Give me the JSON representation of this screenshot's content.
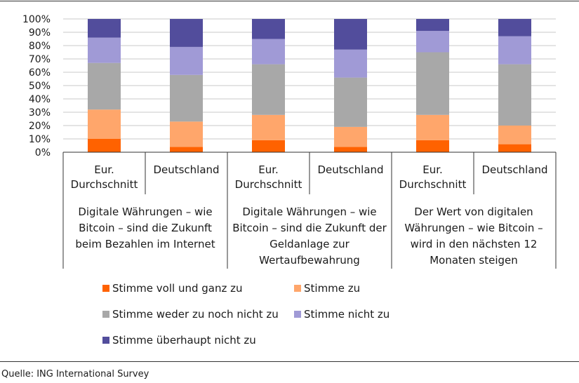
{
  "chart_data": {
    "type": "bar",
    "stacked": true,
    "ylim": [
      0,
      100
    ],
    "grid": true,
    "legend_placement": "bottom",
    "y_ticks": [
      "0%",
      "10%",
      "20%",
      "30%",
      "40%",
      "50%",
      "60%",
      "70%",
      "80%",
      "90%",
      "100%"
    ],
    "categories": [
      [
        "Eur.",
        "Durchschnitt"
      ],
      [
        "Deutschland"
      ],
      [
        "Eur.",
        "Durchschnitt"
      ],
      [
        "Deutschland"
      ],
      [
        "Eur.",
        "Durchschnitt"
      ],
      [
        "Deutschland"
      ]
    ],
    "groups": [
      [
        "Digitale Währungen – wie",
        "Bitcoin – sind die Zukunft",
        "beim Bezahlen im Internet"
      ],
      [
        "Digitale Währungen – wie",
        "Bitcoin – sind die Zukunft der",
        "Geldanlage zur",
        "Wertaufbewahrung"
      ],
      [
        "Der Wert von digitalen",
        "Währungen – wie Bitcoin –",
        "wird in den nächsten 12",
        "Monaten steigen"
      ]
    ],
    "series": [
      {
        "name": "Stimme voll und ganz zu",
        "color": "#ff6200",
        "values": [
          10,
          4,
          9,
          4,
          9,
          6
        ]
      },
      {
        "name": "Stimme zu",
        "color": "#ffa66b",
        "values": [
          22,
          19,
          19,
          15,
          19,
          14
        ]
      },
      {
        "name": "Stimme weder zu noch nicht zu",
        "color": "#a8a8a8",
        "values": [
          35,
          35,
          38,
          37,
          47,
          46
        ]
      },
      {
        "name": "Stimme nicht zu",
        "color": "#a09ad6",
        "values": [
          19,
          21,
          19,
          21,
          16,
          21
        ]
      },
      {
        "name": "Stimme überhaupt nicht zu",
        "color": "#524d9c",
        "values": [
          14,
          21,
          15,
          23,
          9,
          13
        ]
      }
    ],
    "source": "Quelle: ING International Survey"
  }
}
